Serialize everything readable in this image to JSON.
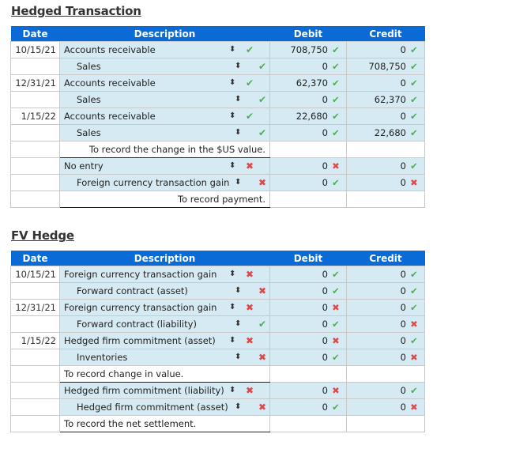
{
  "sections": [
    {
      "title": "Hedged Transaction",
      "headers": {
        "date": "Date",
        "description": "Description",
        "debit": "Debit",
        "credit": "Credit"
      },
      "rows": [
        {
          "type": "entry",
          "date": "10/15/21",
          "desc": "Accounts receivable",
          "indent": 0,
          "desc_mark": "check",
          "debit": "708,750",
          "debit_mark": "check",
          "credit": "0",
          "credit_mark": "check"
        },
        {
          "type": "entry",
          "date": "",
          "desc": "Sales",
          "indent": 1,
          "desc_mark": "check",
          "debit": "0",
          "debit_mark": "check",
          "credit": "708,750",
          "credit_mark": "check"
        },
        {
          "type": "entry",
          "date": "12/31/21",
          "desc": "Accounts receivable",
          "indent": 0,
          "desc_mark": "check",
          "debit": "62,370",
          "debit_mark": "check",
          "credit": "0",
          "credit_mark": "check"
        },
        {
          "type": "entry",
          "date": "",
          "desc": "Sales",
          "indent": 1,
          "desc_mark": "check",
          "debit": "0",
          "debit_mark": "check",
          "credit": "62,370",
          "credit_mark": "check"
        },
        {
          "type": "entry",
          "date": "1/15/22",
          "desc": "Accounts receivable",
          "indent": 0,
          "desc_mark": "check",
          "debit": "22,680",
          "debit_mark": "check",
          "credit": "0",
          "credit_mark": "check"
        },
        {
          "type": "entry",
          "date": "",
          "desc": "Sales",
          "indent": 1,
          "desc_mark": "check",
          "debit": "0",
          "debit_mark": "check",
          "credit": "22,680",
          "credit_mark": "check"
        },
        {
          "type": "memo",
          "text": "To record the change in the $US value.",
          "align": "right"
        },
        {
          "type": "entry",
          "date": "",
          "desc": "No entry",
          "indent": 0,
          "desc_mark": "cross",
          "debit": "0",
          "debit_mark": "cross",
          "credit": "0",
          "credit_mark": "check"
        },
        {
          "type": "entry",
          "date": "",
          "desc": "Foreign currency transaction gain",
          "indent": 1,
          "desc_mark": "cross",
          "debit": "0",
          "debit_mark": "check",
          "credit": "0",
          "credit_mark": "cross"
        },
        {
          "type": "memo",
          "text": "To record payment.",
          "align": "right"
        }
      ]
    },
    {
      "title": "FV Hedge",
      "headers": {
        "date": "Date",
        "description": "Description",
        "debit": "Debit",
        "credit": "Credit"
      },
      "rows": [
        {
          "type": "entry",
          "date": "10/15/21",
          "desc": "Foreign currency transaction gain",
          "indent": 0,
          "desc_mark": "cross",
          "debit": "0",
          "debit_mark": "check",
          "credit": "0",
          "credit_mark": "check"
        },
        {
          "type": "entry",
          "date": "",
          "desc": "Forward contract (asset)",
          "indent": 1,
          "desc_mark": "cross",
          "debit": "0",
          "debit_mark": "check",
          "credit": "0",
          "credit_mark": "check"
        },
        {
          "type": "entry",
          "date": "12/31/21",
          "desc": "Foreign currency transaction gain",
          "indent": 0,
          "desc_mark": "cross",
          "debit": "0",
          "debit_mark": "cross",
          "credit": "0",
          "credit_mark": "check"
        },
        {
          "type": "entry",
          "date": "",
          "desc": "Forward contract (liability)",
          "indent": 1,
          "desc_mark": "check",
          "debit": "0",
          "debit_mark": "check",
          "credit": "0",
          "credit_mark": "cross"
        },
        {
          "type": "entry",
          "date": "1/15/22",
          "desc": "Hedged firm commitment (asset)",
          "indent": 0,
          "desc_mark": "cross",
          "debit": "0",
          "debit_mark": "cross",
          "credit": "0",
          "credit_mark": "check"
        },
        {
          "type": "entry",
          "date": "",
          "desc": "Inventories",
          "indent": 1,
          "desc_mark": "cross",
          "debit": "0",
          "debit_mark": "check",
          "credit": "0",
          "credit_mark": "cross"
        },
        {
          "type": "memo",
          "text": "To record change in value.",
          "align": "left"
        },
        {
          "type": "entry",
          "date": "",
          "desc": "Hedged firm commitment (liability)",
          "indent": 0,
          "desc_mark": "cross",
          "debit": "0",
          "debit_mark": "cross",
          "credit": "0",
          "credit_mark": "check"
        },
        {
          "type": "entry",
          "date": "",
          "desc": "Hedged firm commitment (asset)",
          "indent": 1,
          "desc_mark": "cross",
          "debit": "0",
          "debit_mark": "check",
          "credit": "0",
          "credit_mark": "cross"
        },
        {
          "type": "memo",
          "text": "To record the net settlement.",
          "align": "left"
        }
      ]
    }
  ],
  "icons": {
    "check": "✔",
    "cross": "✖",
    "spinner": "⬍"
  },
  "colors": {
    "header_bg": "#0a6bd6",
    "cell_bg": "#d5eaf2",
    "check": "#4caf50",
    "cross": "#e04848"
  }
}
